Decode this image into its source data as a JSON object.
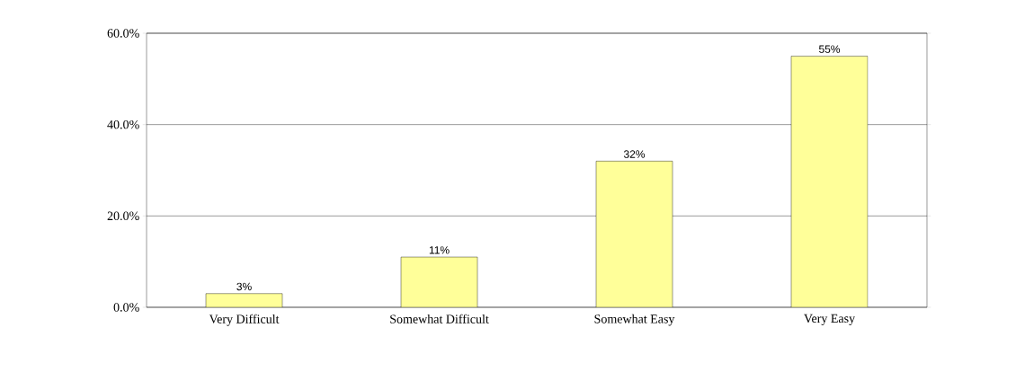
{
  "chart_data": {
    "type": "bar",
    "categories": [
      "Very Difficult",
      "Somewhat Difficult",
      "Somewhat Easy",
      "Very Easy"
    ],
    "values": [
      3,
      11,
      32,
      55
    ],
    "color": "#ffff99",
    "value_labels": [
      "3%",
      "11%",
      "32%",
      "55%"
    ],
    "ylim": [
      0,
      60
    ],
    "yticks": [
      {
        "value": 0,
        "label": "0.0%"
      },
      {
        "value": 20,
        "label": "20.0%"
      },
      {
        "value": 40,
        "label": "40.0%"
      },
      {
        "value": 60,
        "label": "60.0%"
      }
    ],
    "grid": "y"
  }
}
